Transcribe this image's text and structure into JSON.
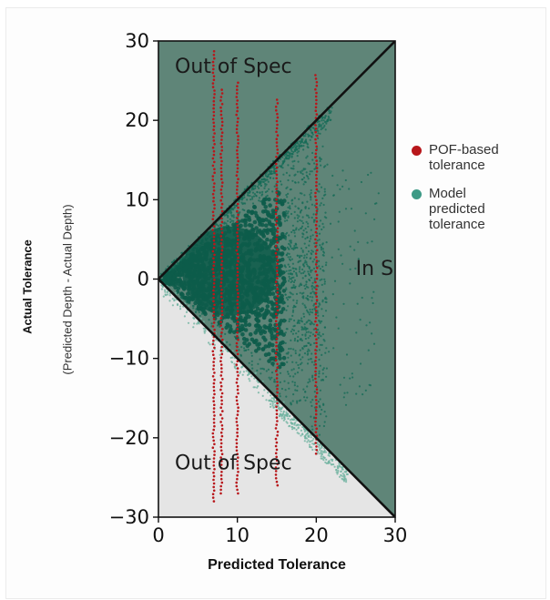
{
  "chart_data": {
    "type": "scatter",
    "title": "",
    "xlabel": "Predicted Tolerance",
    "ylabel": "Actual Tolerance",
    "ylabel_secondary": "(Predicted Depth - Actual Depth)",
    "xlim": [
      0,
      30
    ],
    "ylim": [
      -30,
      30
    ],
    "x_ticks": [
      0,
      10,
      20,
      30
    ],
    "y_ticks": [
      -30,
      -20,
      -10,
      0,
      10,
      20,
      30
    ],
    "grid": false,
    "legend_position": "right",
    "regions": [
      {
        "label": "Out of Spec",
        "where": "y > x",
        "color": "#5f8578",
        "label_at": [
          9.5,
          26
        ]
      },
      {
        "label": "In Spec",
        "where": "-x <= y <= x",
        "color": "#5f8578",
        "label_at": [
          25,
          0.5
        ]
      },
      {
        "label": "Out of Spec",
        "where": "y < -x",
        "color": "#e5e5e5",
        "label_at": [
          9.5,
          -24
        ]
      }
    ],
    "boundary_lines": [
      {
        "x": [
          0,
          30
        ],
        "y": [
          0,
          30
        ],
        "color": "#111111"
      },
      {
        "x": [
          0,
          30
        ],
        "y": [
          0,
          -30
        ],
        "color": "#111111"
      }
    ],
    "series": [
      {
        "name": "Model predicted tolerance",
        "color": "#6fb3a0",
        "core_color": "#0d5c4a",
        "x_range": [
          0,
          24
        ],
        "y_range": [
          -29,
          29
        ]
      },
      {
        "name": "POF-based tolerance",
        "color": "#b8171b",
        "x": [
          7,
          8,
          10,
          15,
          20
        ],
        "y_ranges": [
          [
            -28,
            29
          ],
          [
            -27,
            24
          ],
          [
            -27,
            25
          ],
          [
            -26,
            23
          ],
          [
            -22,
            26
          ]
        ]
      }
    ]
  }
}
